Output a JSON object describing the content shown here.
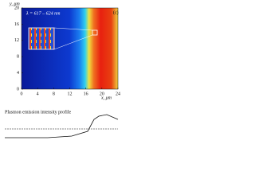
{
  "chart_data": {
    "type": "heatmap",
    "panel_label": "(c)",
    "annotation": "λ = 617 – 624 nm",
    "x_label": "x, μm",
    "y_label": "y, μm",
    "xlim": [
      0,
      24
    ],
    "ylim": [
      0,
      20
    ],
    "xticks": [
      0,
      4,
      8,
      12,
      16,
      20,
      24
    ],
    "yticks": [
      0,
      4,
      8,
      12,
      16,
      20
    ]
  },
  "profile": {
    "title": "Plasmon emission intensity profile"
  }
}
